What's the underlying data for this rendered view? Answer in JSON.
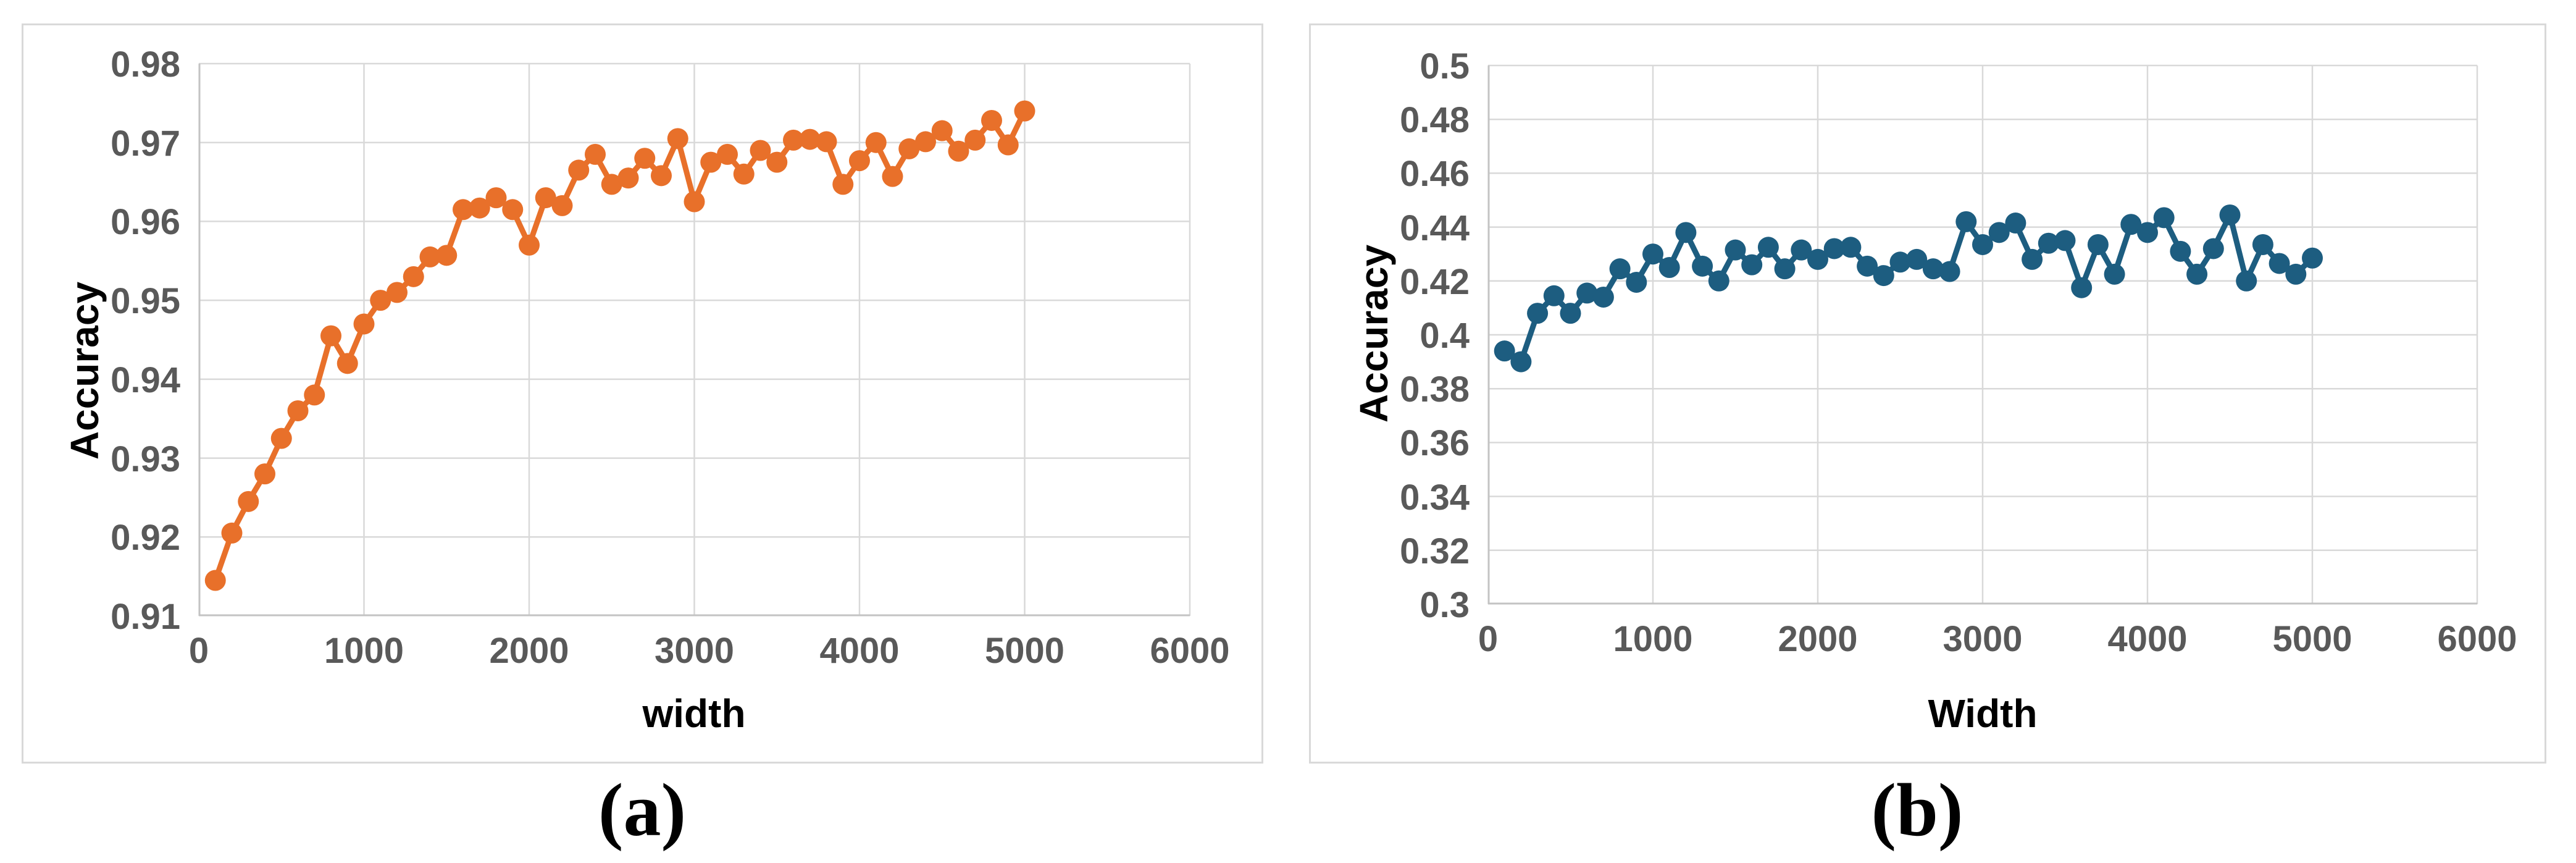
{
  "figure": {
    "panels": [
      {
        "id": "a",
        "caption": "(a)"
      },
      {
        "id": "b",
        "caption": "(b)"
      }
    ]
  },
  "chart_data": [
    {
      "type": "line",
      "panel": "a",
      "caption": "(a)",
      "xlabel": "width",
      "ylabel": "Accuracy",
      "legend": "none",
      "grid": true,
      "series_color": "#e8702a",
      "gridline_color": "#d9d9d9",
      "axis_line_color": "#c3c3c3",
      "tick_text_color": "#595959",
      "xlim": [
        0,
        6000
      ],
      "ylim": [
        0.91,
        0.98
      ],
      "xtick_values": [
        0,
        1000,
        2000,
        3000,
        4000,
        5000,
        6000
      ],
      "xtick_labels": [
        "0",
        "1000",
        "2000",
        "3000",
        "4000",
        "5000",
        "6000"
      ],
      "ytick_values": [
        0.98,
        0.97,
        0.96,
        0.95,
        0.94,
        0.93,
        0.92,
        0.91
      ],
      "ytick_labels": [
        "0.98",
        "0.97",
        "0.96",
        "0.95",
        "0.94",
        "0.93",
        "0.92",
        "0.91"
      ],
      "x": [
        100,
        200,
        300,
        400,
        500,
        600,
        700,
        800,
        900,
        1000,
        1100,
        1200,
        1300,
        1400,
        1500,
        1600,
        1700,
        1800,
        1900,
        2000,
        2100,
        2200,
        2300,
        2400,
        2500,
        2600,
        2700,
        2800,
        2900,
        3000,
        3100,
        3200,
        3300,
        3400,
        3500,
        3600,
        3700,
        3800,
        3900,
        4000,
        4100,
        4200,
        4300,
        4400,
        4500,
        4600,
        4700,
        4800,
        4900,
        5000
      ],
      "y": [
        0.9145,
        0.9205,
        0.9245,
        0.928,
        0.9325,
        0.936,
        0.938,
        0.9455,
        0.942,
        0.947,
        0.95,
        0.951,
        0.953,
        0.9555,
        0.9557,
        0.9615,
        0.9617,
        0.963,
        0.9615,
        0.957,
        0.963,
        0.962,
        0.9665,
        0.9685,
        0.9647,
        0.9655,
        0.968,
        0.9658,
        0.9705,
        0.9625,
        0.9675,
        0.9685,
        0.966,
        0.969,
        0.9675,
        0.9703,
        0.9704,
        0.9701,
        0.9647,
        0.9677,
        0.97,
        0.9657,
        0.9692,
        0.9701,
        0.9715,
        0.9689,
        0.9703,
        0.9728,
        0.9697,
        0.974
      ]
    },
    {
      "type": "line",
      "panel": "b",
      "caption": "(b)",
      "xlabel": "Width",
      "ylabel": "Accuracy",
      "legend": "none",
      "grid": true,
      "series_color": "#1d5d80",
      "gridline_color": "#d9d9d9",
      "axis_line_color": "#c3c3c3",
      "tick_text_color": "#595959",
      "xlim": [
        0,
        6000
      ],
      "ylim": [
        0.3,
        0.5
      ],
      "xtick_values": [
        0,
        1000,
        2000,
        3000,
        4000,
        5000,
        6000
      ],
      "xtick_labels": [
        "0",
        "1000",
        "2000",
        "3000",
        "4000",
        "5000",
        "6000"
      ],
      "ytick_values": [
        0.5,
        0.48,
        0.46,
        0.44,
        0.42,
        0.4,
        0.38,
        0.36,
        0.34,
        0.32,
        0.3
      ],
      "ytick_labels": [
        "0.5",
        "0.48",
        "0.46",
        "0.44",
        "0.42",
        "0.4",
        "0.38",
        "0.36",
        "0.34",
        "0.32",
        "0.3"
      ],
      "x": [
        100,
        200,
        300,
        400,
        500,
        600,
        700,
        800,
        900,
        1000,
        1100,
        1200,
        1300,
        1400,
        1500,
        1600,
        1700,
        1800,
        1900,
        2000,
        2100,
        2200,
        2300,
        2400,
        2500,
        2600,
        2700,
        2800,
        2900,
        3000,
        3100,
        3200,
        3300,
        3400,
        3500,
        3600,
        3700,
        3800,
        3900,
        4000,
        4100,
        4200,
        4300,
        4400,
        4500,
        4600,
        4700,
        4800,
        4900,
        5000
      ],
      "y": [
        0.394,
        0.39,
        0.408,
        0.4145,
        0.408,
        0.4155,
        0.414,
        0.4245,
        0.4195,
        0.43,
        0.425,
        0.438,
        0.4255,
        0.42,
        0.4315,
        0.426,
        0.4325,
        0.4245,
        0.4315,
        0.428,
        0.432,
        0.4325,
        0.4255,
        0.422,
        0.427,
        0.428,
        0.4245,
        0.4235,
        0.442,
        0.4335,
        0.438,
        0.4415,
        0.428,
        0.434,
        0.435,
        0.4175,
        0.4335,
        0.4225,
        0.441,
        0.438,
        0.4435,
        0.431,
        0.4225,
        0.432,
        0.4445,
        0.42,
        0.4335,
        0.4265,
        0.4225,
        0.4285
      ]
    }
  ]
}
